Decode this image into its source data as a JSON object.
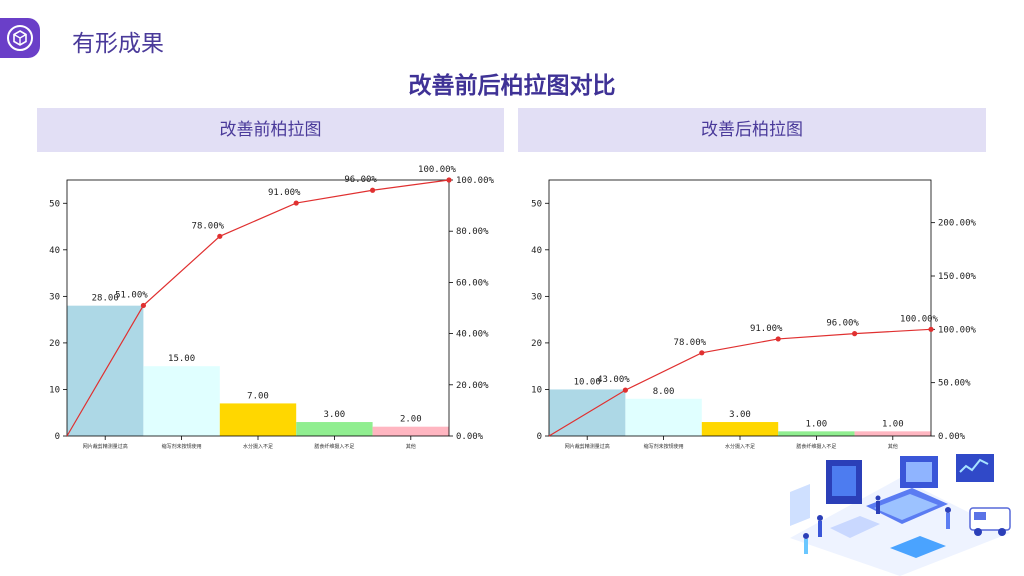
{
  "header": {
    "title": "有形成果",
    "logo_icon": "cube-icon"
  },
  "main_title": "改善前后柏拉图对比",
  "panels": [
    {
      "header": "改善前柏拉图"
    },
    {
      "header": "改善后柏拉图"
    }
  ],
  "chart_data": [
    {
      "type": "bar",
      "title": "",
      "categories": [
        "网片裁剪精测量过高",
        "缩写剂未按规使用",
        "水分摄入不足",
        "膳食纤维摄入不足",
        "其他"
      ],
      "series": [
        {
          "type": "bar",
          "values": [
            28,
            15,
            7,
            3,
            2
          ],
          "labels": [
            "28.00",
            "15.00",
            "7.00",
            "3.00",
            "2.00"
          ]
        },
        {
          "type": "line",
          "axis": "right",
          "values": [
            51,
            78,
            91,
            96,
            100
          ],
          "labels": [
            "51.00%",
            "78.00%",
            "91.00%",
            "96.00%",
            "100.00%"
          ],
          "color": "#e03030"
        }
      ],
      "bar_colors": [
        "#add8e6",
        "#e0ffff",
        "#ffd700",
        "#90ee90",
        "#ffb6c1"
      ],
      "ylim": [
        0,
        55
      ],
      "y_ticks": [
        0,
        10,
        20,
        30,
        40,
        50
      ],
      "y2lim": [
        0,
        100
      ],
      "y2_ticks": [
        "0.00%",
        "20.00%",
        "40.00%",
        "60.00%",
        "80.00%",
        "100.00%"
      ],
      "y2_tick_values": [
        0,
        20,
        40,
        60,
        80,
        100
      ],
      "highlight_label_index": 1,
      "xlabel": "",
      "ylabel": ""
    },
    {
      "type": "bar",
      "title": "",
      "categories": [
        "网片裁剪精测量过高",
        "缩写剂未按规使用",
        "水分摄入不足",
        "膳食纤维摄入不足",
        "其他"
      ],
      "series": [
        {
          "type": "bar",
          "values": [
            10,
            8,
            3,
            1,
            1
          ],
          "labels": [
            "10.00",
            "8.00",
            "3.00",
            "1.00",
            "1.00"
          ]
        },
        {
          "type": "line",
          "axis": "right",
          "values": [
            43,
            78,
            91,
            96,
            100
          ],
          "labels": [
            "43.00%",
            "78.00%",
            "91.00%",
            "96.00%",
            "100.00%"
          ],
          "color": "#e03030"
        }
      ],
      "bar_colors": [
        "#add8e6",
        "#e0ffff",
        "#ffd700",
        "#90ee90",
        "#ffb6c1"
      ],
      "ylim": [
        0,
        55
      ],
      "y_ticks": [
        0,
        10,
        20,
        30,
        40,
        50
      ],
      "y2lim": [
        0,
        240
      ],
      "y2_ticks": [
        "0.00%",
        "50.00%",
        "100.00%",
        "150.00%",
        "200.00%"
      ],
      "y2_tick_values": [
        0,
        50,
        100,
        150,
        200
      ],
      "highlight_label_index": 1,
      "xlabel": "",
      "ylabel": ""
    }
  ],
  "decoration": {
    "illustration": "medical-isometric-illustration"
  }
}
